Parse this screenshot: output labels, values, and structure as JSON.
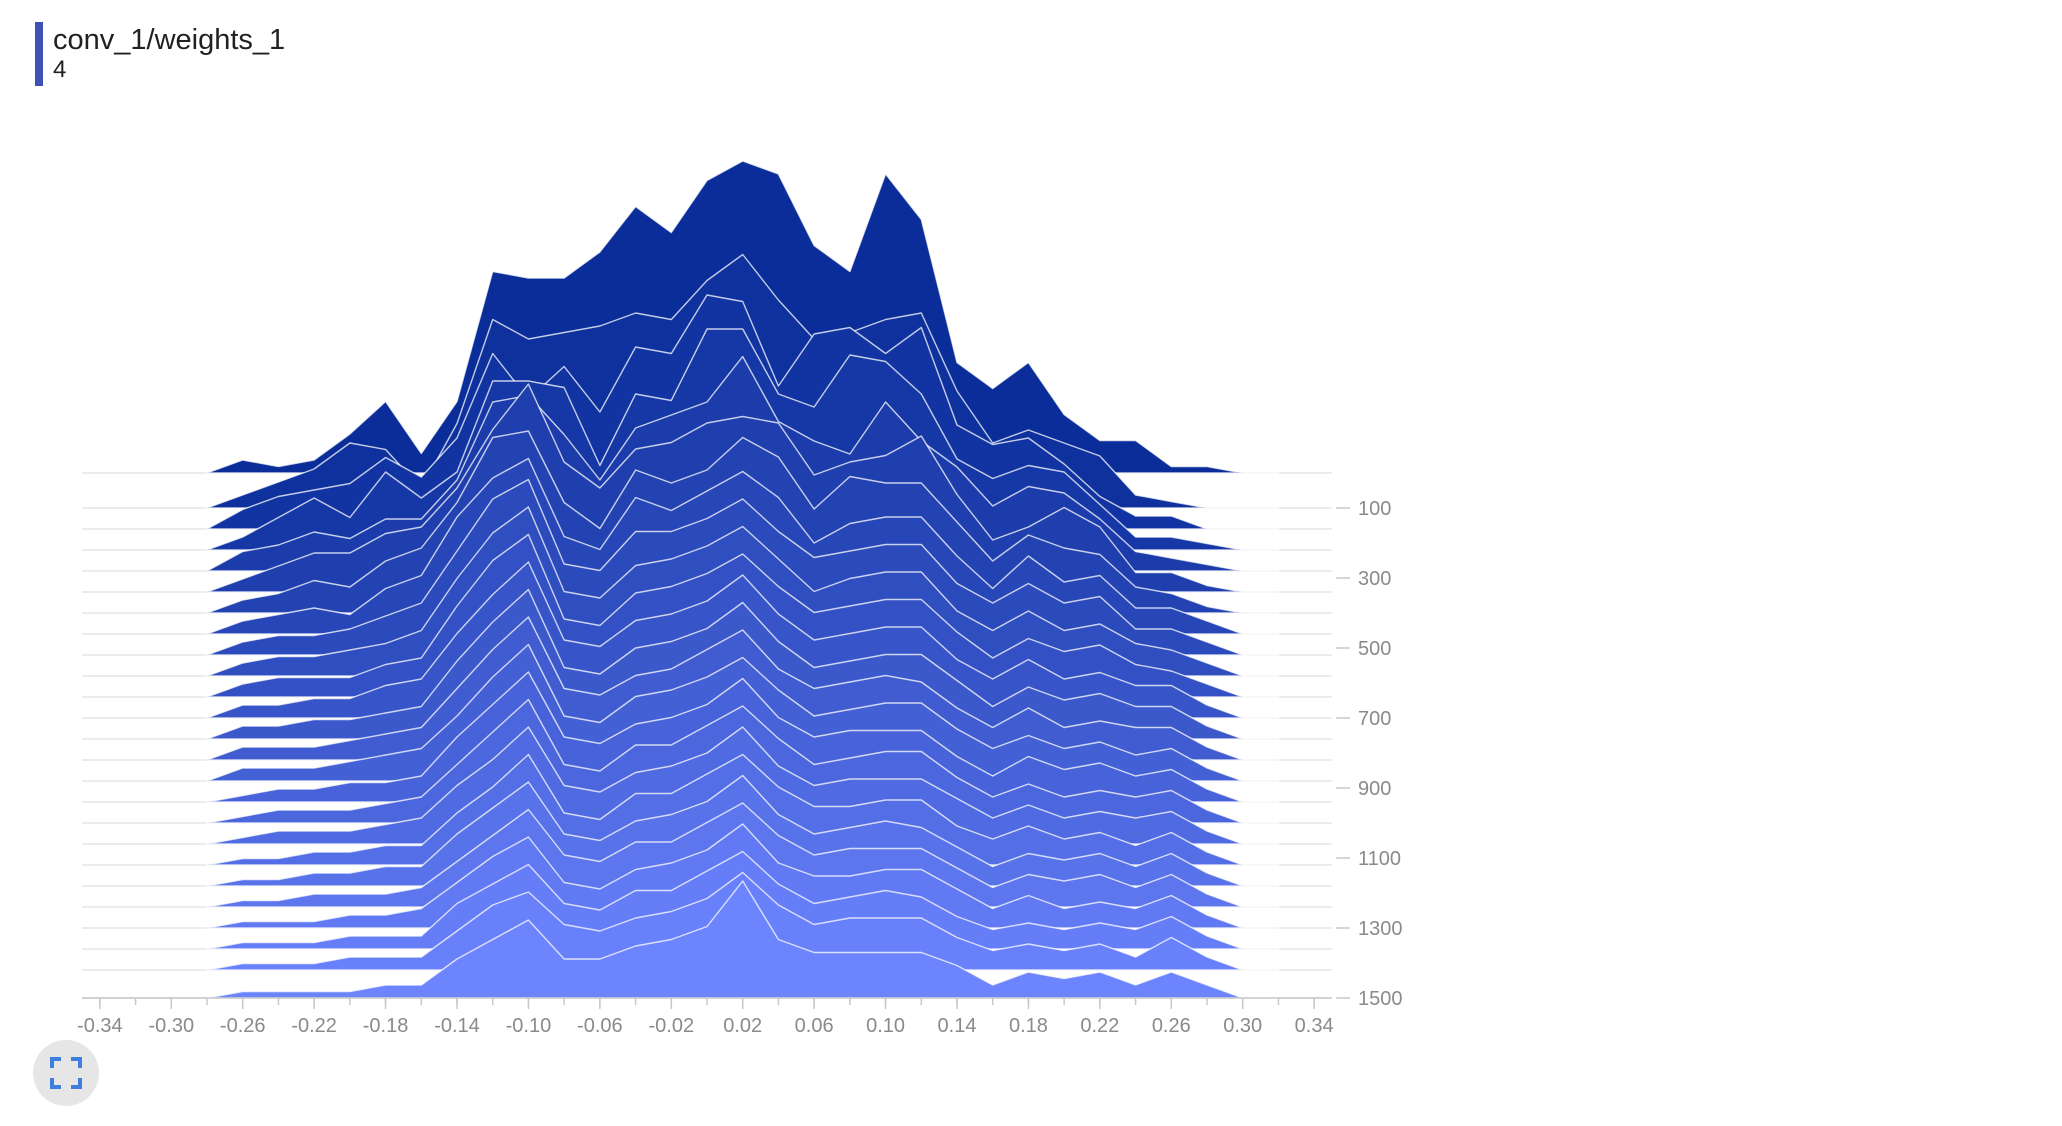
{
  "card": {
    "title": "conv_1/weights_1",
    "run": "4"
  },
  "colors": {
    "title_bar": "#3f51b5",
    "oldest_slice": "#0a2d99",
    "newest_slice": "#6d84ff",
    "slice_outline": "#ffffff",
    "tick_label": "#8a8a8a"
  },
  "controls": {
    "expand_icon": "fullscreen-icon"
  },
  "chart_data": {
    "type": "area",
    "mode": "offset",
    "xlim": [
      -0.35,
      0.35
    ],
    "x_ticks": [
      "-0.34",
      "-0.30",
      "-0.26",
      "-0.22",
      "-0.18",
      "-0.14",
      "-0.10",
      "-0.06",
      "-0.02",
      "0.02",
      "0.06",
      "0.10",
      "0.14",
      "0.18",
      "0.22",
      "0.26",
      "0.30",
      "0.34"
    ],
    "y_ticks": [
      "100",
      "300",
      "500",
      "700",
      "900",
      "1100",
      "1300",
      "1500"
    ],
    "step_range": [
      0,
      1500
    ],
    "x": [
      -0.28,
      -0.26,
      -0.24,
      -0.22,
      -0.2,
      -0.18,
      -0.16,
      -0.14,
      -0.12,
      -0.1,
      -0.08,
      -0.06,
      -0.04,
      -0.02,
      0.0,
      0.02,
      0.04,
      0.06,
      0.08,
      0.1,
      0.12,
      0.14,
      0.16,
      0.18,
      0.2,
      0.22,
      0.24,
      0.26,
      0.28,
      0.3,
      0.32
    ],
    "slices": [
      {
        "step": 0,
        "counts": [
          0,
          2,
          1,
          2,
          6,
          11,
          3,
          11,
          31,
          30,
          30,
          34,
          41,
          37,
          45,
          48,
          46,
          35,
          31,
          46,
          39,
          17,
          13,
          17,
          9,
          5,
          5,
          1,
          1,
          0,
          0
        ]
      },
      {
        "step": 100,
        "counts": [
          0,
          2,
          4,
          6,
          10,
          9,
          3,
          13,
          29,
          26,
          27,
          28,
          30,
          29,
          35,
          39,
          32,
          26,
          27,
          29,
          30,
          18,
          10,
          12,
          10,
          8,
          2,
          1,
          0,
          0,
          0
        ]
      },
      {
        "step": 160,
        "counts": [
          0,
          3,
          5,
          6,
          7,
          11,
          8,
          14,
          27,
          20,
          25,
          18,
          28,
          27,
          36,
          35,
          22,
          30,
          31,
          27,
          31,
          16,
          13,
          14,
          10,
          5,
          2,
          2,
          0,
          0,
          0
        ]
      },
      {
        "step": 220,
        "counts": [
          0,
          2,
          5,
          8,
          5,
          12,
          8,
          12,
          26,
          26,
          25,
          13,
          24,
          23,
          34,
          34,
          24,
          22,
          30,
          29,
          24,
          14,
          11,
          13,
          12,
          7,
          2,
          2,
          1,
          0,
          0
        ]
      },
      {
        "step": 280,
        "counts": [
          0,
          3,
          4,
          6,
          5,
          8,
          8,
          14,
          26,
          27,
          21,
          14,
          22,
          24,
          26,
          33,
          23,
          20,
          18,
          26,
          20,
          16,
          10,
          13,
          12,
          8,
          3,
          2,
          1,
          0,
          0
        ]
      },
      {
        "step": 340,
        "counts": [
          0,
          2,
          4,
          6,
          6,
          9,
          10,
          16,
          25,
          32,
          20,
          16,
          22,
          23,
          26,
          27,
          26,
          18,
          20,
          21,
          24,
          15,
          8,
          10,
          13,
          10,
          3,
          3,
          1,
          0,
          0
        ]
      },
      {
        "step": 400,
        "counts": [
          0,
          2,
          3,
          5,
          4,
          8,
          10,
          17,
          27,
          28,
          17,
          13,
          22,
          20,
          22,
          27,
          24,
          16,
          21,
          20,
          20,
          14,
          8,
          12,
          10,
          9,
          4,
          3,
          1,
          0,
          0
        ]
      },
      {
        "step": 460,
        "counts": [
          0,
          2,
          3,
          4,
          3,
          7,
          9,
          18,
          24,
          27,
          15,
          13,
          21,
          19,
          22,
          25,
          21,
          14,
          17,
          18,
          18,
          12,
          7,
          12,
          8,
          9,
          4,
          4,
          2,
          0,
          0
        ]
      },
      {
        "step": 520,
        "counts": [
          0,
          2,
          3,
          3,
          4,
          6,
          8,
          16,
          24,
          27,
          14,
          13,
          19,
          19,
          21,
          24,
          19,
          15,
          16,
          17,
          17,
          11,
          8,
          11,
          8,
          9,
          4,
          4,
          2,
          0,
          0
        ]
      },
      {
        "step": 580,
        "counts": [
          0,
          2,
          3,
          3,
          4,
          5,
          7,
          15,
          22,
          26,
          13,
          12,
          17,
          18,
          20,
          23,
          18,
          13,
          15,
          16,
          16,
          10,
          7,
          10,
          7,
          8,
          5,
          4,
          2,
          0,
          0
        ]
      },
      {
        "step": 640,
        "counts": [
          0,
          2,
          3,
          3,
          3,
          5,
          6,
          14,
          21,
          25,
          12,
          11,
          16,
          17,
          19,
          22,
          17,
          13,
          14,
          15,
          15,
          10,
          6,
          9,
          7,
          8,
          5,
          4,
          2,
          0,
          0
        ]
      },
      {
        "step": 700,
        "counts": [
          0,
          2,
          2,
          3,
          3,
          5,
          6,
          13,
          19,
          24,
          12,
          11,
          15,
          16,
          18,
          22,
          16,
          12,
          13,
          14,
          14,
          9,
          6,
          9,
          6,
          7,
          5,
          5,
          2,
          0,
          0
        ]
      },
      {
        "step": 760,
        "counts": [
          0,
          2,
          2,
          3,
          3,
          4,
          5,
          12,
          18,
          23,
          11,
          10,
          14,
          15,
          17,
          21,
          15,
          11,
          12,
          13,
          13,
          9,
          5,
          8,
          6,
          7,
          5,
          5,
          2,
          0,
          0
        ]
      },
      {
        "step": 820,
        "counts": [
          0,
          2,
          2,
          2,
          3,
          4,
          5,
          11,
          17,
          22,
          11,
          10,
          13,
          14,
          17,
          20,
          14,
          11,
          12,
          13,
          12,
          8,
          5,
          8,
          5,
          6,
          5,
          5,
          2,
          0,
          0
        ]
      },
      {
        "step": 880,
        "counts": [
          0,
          2,
          2,
          2,
          3,
          4,
          5,
          10,
          16,
          21,
          10,
          9,
          13,
          14,
          16,
          19,
          14,
          10,
          11,
          12,
          12,
          8,
          5,
          7,
          5,
          6,
          4,
          5,
          2,
          0,
          0
        ]
      },
      {
        "step": 940,
        "counts": [
          0,
          1,
          2,
          2,
          3,
          3,
          4,
          10,
          15,
          20,
          10,
          9,
          12,
          13,
          15,
          19,
          13,
          10,
          11,
          11,
          11,
          7,
          4,
          7,
          5,
          6,
          4,
          5,
          2,
          0,
          0
        ]
      },
      {
        "step": 1000,
        "counts": [
          0,
          1,
          2,
          2,
          2,
          3,
          4,
          9,
          14,
          19,
          9,
          8,
          12,
          12,
          15,
          18,
          13,
          9,
          10,
          11,
          11,
          7,
          4,
          6,
          4,
          5,
          4,
          5,
          2,
          0,
          0
        ]
      },
      {
        "step": 1060,
        "counts": [
          0,
          1,
          2,
          2,
          2,
          3,
          4,
          9,
          13,
          18,
          9,
          8,
          11,
          12,
          14,
          18,
          12,
          9,
          10,
          10,
          10,
          7,
          4,
          6,
          4,
          5,
          4,
          5,
          2,
          0,
          0
        ]
      },
      {
        "step": 1120,
        "counts": [
          0,
          1,
          1,
          2,
          2,
          3,
          3,
          8,
          12,
          17,
          8,
          7,
          11,
          11,
          14,
          17,
          12,
          9,
          9,
          10,
          10,
          6,
          4,
          6,
          4,
          5,
          3,
          5,
          2,
          0,
          0
        ]
      },
      {
        "step": 1180,
        "counts": [
          0,
          1,
          1,
          2,
          2,
          3,
          3,
          8,
          12,
          16,
          8,
          7,
          10,
          11,
          13,
          17,
          11,
          8,
          9,
          10,
          9,
          6,
          3,
          5,
          4,
          5,
          3,
          5,
          2,
          0,
          0
        ]
      },
      {
        "step": 1240,
        "counts": [
          0,
          1,
          1,
          2,
          2,
          2,
          3,
          7,
          11,
          15,
          8,
          7,
          10,
          10,
          13,
          16,
          11,
          8,
          9,
          9,
          9,
          6,
          3,
          5,
          4,
          5,
          3,
          5,
          2,
          0,
          0
        ]
      },
      {
        "step": 1300,
        "counts": [
          0,
          1,
          1,
          1,
          2,
          2,
          3,
          7,
          11,
          14,
          7,
          6,
          9,
          10,
          12,
          16,
          10,
          8,
          8,
          9,
          9,
          6,
          3,
          5,
          3,
          4,
          3,
          5,
          2,
          0,
          0
        ]
      },
      {
        "step": 1360,
        "counts": [
          0,
          1,
          1,
          1,
          2,
          2,
          2,
          7,
          10,
          13,
          7,
          6,
          9,
          9,
          12,
          15,
          10,
          7,
          8,
          9,
          8,
          5,
          3,
          4,
          3,
          4,
          3,
          5,
          2,
          0,
          0
        ]
      },
      {
        "step": 1420,
        "counts": [
          0,
          1,
          1,
          1,
          2,
          2,
          2,
          6,
          10,
          12,
          7,
          6,
          8,
          9,
          11,
          15,
          10,
          7,
          8,
          8,
          8,
          5,
          3,
          4,
          3,
          4,
          2,
          5,
          2,
          0,
          0
        ]
      },
      {
        "step": 1500,
        "counts": [
          0,
          1,
          1,
          1,
          1,
          2,
          2,
          6,
          9,
          12,
          6,
          6,
          8,
          9,
          11,
          18,
          9,
          7,
          7,
          7,
          7,
          5,
          2,
          4,
          3,
          4,
          2,
          4,
          2,
          0,
          0
        ]
      }
    ]
  }
}
